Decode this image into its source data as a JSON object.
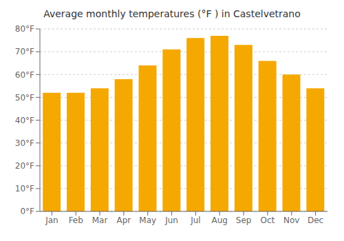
{
  "chart_data": {
    "type": "bar",
    "title": "Average monthly temperatures (°F ) in Castelvetrano",
    "categories": [
      "Jan",
      "Feb",
      "Mar",
      "Apr",
      "May",
      "Jun",
      "Jul",
      "Aug",
      "Sep",
      "Oct",
      "Nov",
      "Dec"
    ],
    "values": [
      52,
      52,
      54,
      58,
      64,
      71,
      76,
      77,
      73,
      66,
      60,
      54
    ],
    "color": "#F5A800",
    "ylim": [
      0,
      80
    ],
    "yticks": [
      {
        "value": 0,
        "label": "0°F"
      },
      {
        "value": 10,
        "label": "10°F"
      },
      {
        "value": 20,
        "label": "20°F"
      },
      {
        "value": 30,
        "label": "30°F"
      },
      {
        "value": 40,
        "label": "40°F"
      },
      {
        "value": 50,
        "label": "50°F"
      },
      {
        "value": 60,
        "label": "60°F"
      },
      {
        "value": 70,
        "label": "70°F"
      },
      {
        "value": 80,
        "label": "80°F"
      }
    ],
    "grid": true
  }
}
